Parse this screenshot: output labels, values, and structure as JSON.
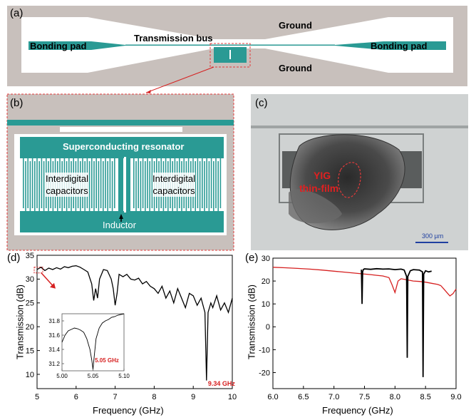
{
  "panel_a": {
    "label": "(a)",
    "bonding_pad_left": "Bonding pad",
    "bonding_pad_right": "Bonding pad",
    "transmission_bus": "Transmission bus",
    "ground_top": "Ground",
    "ground_bottom": "Ground",
    "colors": {
      "substrate": "#c8c0bc",
      "metal": "#2a9a94"
    }
  },
  "panel_b": {
    "label": "(b)",
    "resonator": "Superconducting resonator",
    "cap_left": "Interdigital\ncapacitors",
    "cap_right": "Interdigital\ncapacitors",
    "inductor": "Inductor"
  },
  "panel_c": {
    "label": "(c)",
    "yig_line1": "YIG",
    "yig_line2": "thin-film",
    "scalebar": "300 µm"
  },
  "chart_data": [
    {
      "id": "d",
      "label": "(d)",
      "type": "line",
      "xlabel": "Frequency (GHz)",
      "ylabel": "Transmission (dB)",
      "xlim": [
        5,
        10
      ],
      "ylim": [
        7,
        35
      ],
      "xticks": [
        "5",
        "6",
        "7",
        "8",
        "9",
        "10"
      ],
      "yticks": [
        "10",
        "15",
        "20",
        "25",
        "30",
        "35"
      ],
      "series": [
        {
          "color": "#000000",
          "x": [
            5.0,
            5.1,
            5.2,
            5.3,
            5.4,
            5.5,
            5.6,
            5.7,
            5.8,
            5.9,
            6.0,
            6.1,
            6.2,
            6.3,
            6.4,
            6.45,
            6.5,
            6.55,
            6.6,
            6.7,
            6.8,
            6.9,
            6.95,
            7.0,
            7.05,
            7.1,
            7.2,
            7.3,
            7.4,
            7.5,
            7.6,
            7.7,
            7.8,
            7.9,
            8.0,
            8.1,
            8.2,
            8.3,
            8.4,
            8.5,
            8.6,
            8.7,
            8.8,
            8.9,
            9.0,
            9.1,
            9.2,
            9.3,
            9.34,
            9.38,
            9.45,
            9.5,
            9.6,
            9.7,
            9.8,
            9.9,
            10.0
          ],
          "y": [
            32,
            32.5,
            31.8,
            32.3,
            32,
            32.4,
            32.1,
            32.6,
            32.4,
            32.7,
            32.8,
            32.5,
            32,
            31.5,
            29,
            25.5,
            28,
            26,
            30,
            32,
            31.8,
            30,
            28,
            24.5,
            27,
            31,
            30.5,
            31,
            30,
            29.8,
            30.2,
            29,
            29.5,
            28.5,
            28,
            27,
            28.5,
            26,
            27.5,
            25,
            28,
            26,
            24,
            27,
            26.5,
            24.5,
            26,
            23,
            8.7,
            23,
            25,
            24,
            26.5,
            23.5,
            25,
            23,
            26
          ]
        }
      ],
      "annotation": "9.34 GHz",
      "inset": {
        "type": "line",
        "xlim": [
          5.0,
          5.1
        ],
        "ylim": [
          31.1,
          31.9
        ],
        "xticks": [
          "5.00",
          "5.05",
          "5.10"
        ],
        "yticks": [
          "31.2",
          "31.4",
          "31.6",
          "31.8"
        ],
        "annotation": "5.05 GHz",
        "series": [
          {
            "color": "#000000",
            "x": [
              5.0,
              5.005,
              5.01,
              5.015,
              5.02,
              5.025,
              5.03,
              5.035,
              5.04,
              5.045,
              5.048,
              5.05,
              5.052,
              5.055,
              5.06,
              5.065,
              5.07,
              5.075,
              5.08,
              5.085,
              5.09,
              5.095,
              5.1
            ],
            "y": [
              31.5,
              31.6,
              31.66,
              31.68,
              31.7,
              31.69,
              31.67,
              31.64,
              31.55,
              31.4,
              31.25,
              31.12,
              31.3,
              31.55,
              31.7,
              31.77,
              31.8,
              31.82,
              31.85,
              31.86,
              31.88,
              31.89,
              31.9
            ]
          }
        ]
      }
    },
    {
      "id": "e",
      "label": "(e)",
      "type": "line",
      "xlabel": "Frequency (GHz)",
      "ylabel": "Transmission (dB)",
      "xlim": [
        6.0,
        9.0
      ],
      "ylim": [
        -27,
        30
      ],
      "xticks": [
        "6.0",
        "6.5",
        "7.0",
        "7.5",
        "8.0",
        "8.5",
        "9.0"
      ],
      "yticks": [
        "-20",
        "-10",
        "0",
        "10",
        "20",
        "30"
      ],
      "series": [
        {
          "color": "#d62020",
          "x": [
            6.0,
            6.2,
            6.4,
            6.6,
            6.8,
            7.0,
            7.2,
            7.4,
            7.6,
            7.7,
            7.8,
            7.9,
            7.95,
            8.0,
            8.05,
            8.1,
            8.2,
            8.3,
            8.4,
            8.5,
            8.6,
            8.7,
            8.75,
            8.8,
            8.85,
            8.9,
            8.95,
            9.0
          ],
          "y": [
            26,
            25.8,
            25.5,
            25.2,
            24.8,
            24.3,
            23.8,
            23.3,
            22.8,
            22.5,
            22.2,
            21.5,
            18.5,
            15,
            20,
            21,
            20.5,
            20,
            19.8,
            19.5,
            19,
            18.5,
            18,
            16.5,
            15,
            13.5,
            14.5,
            16.5
          ]
        },
        {
          "color": "#000000",
          "x": [
            7.45,
            7.46,
            7.47,
            7.48,
            7.5,
            7.6,
            7.7,
            7.8,
            7.9,
            8.0,
            8.1,
            8.15,
            8.19,
            8.2,
            8.21,
            8.25,
            8.3,
            8.4,
            8.45,
            8.46,
            8.47,
            8.5,
            8.55,
            8.6
          ],
          "y": [
            25,
            10,
            24,
            25,
            25.3,
            25.1,
            25.4,
            25.2,
            25.3,
            25,
            25.2,
            24.8,
            22,
            -13.5,
            22,
            24.5,
            25,
            24.8,
            24,
            -22,
            23,
            24.5,
            24,
            24.3
          ]
        }
      ]
    }
  ]
}
